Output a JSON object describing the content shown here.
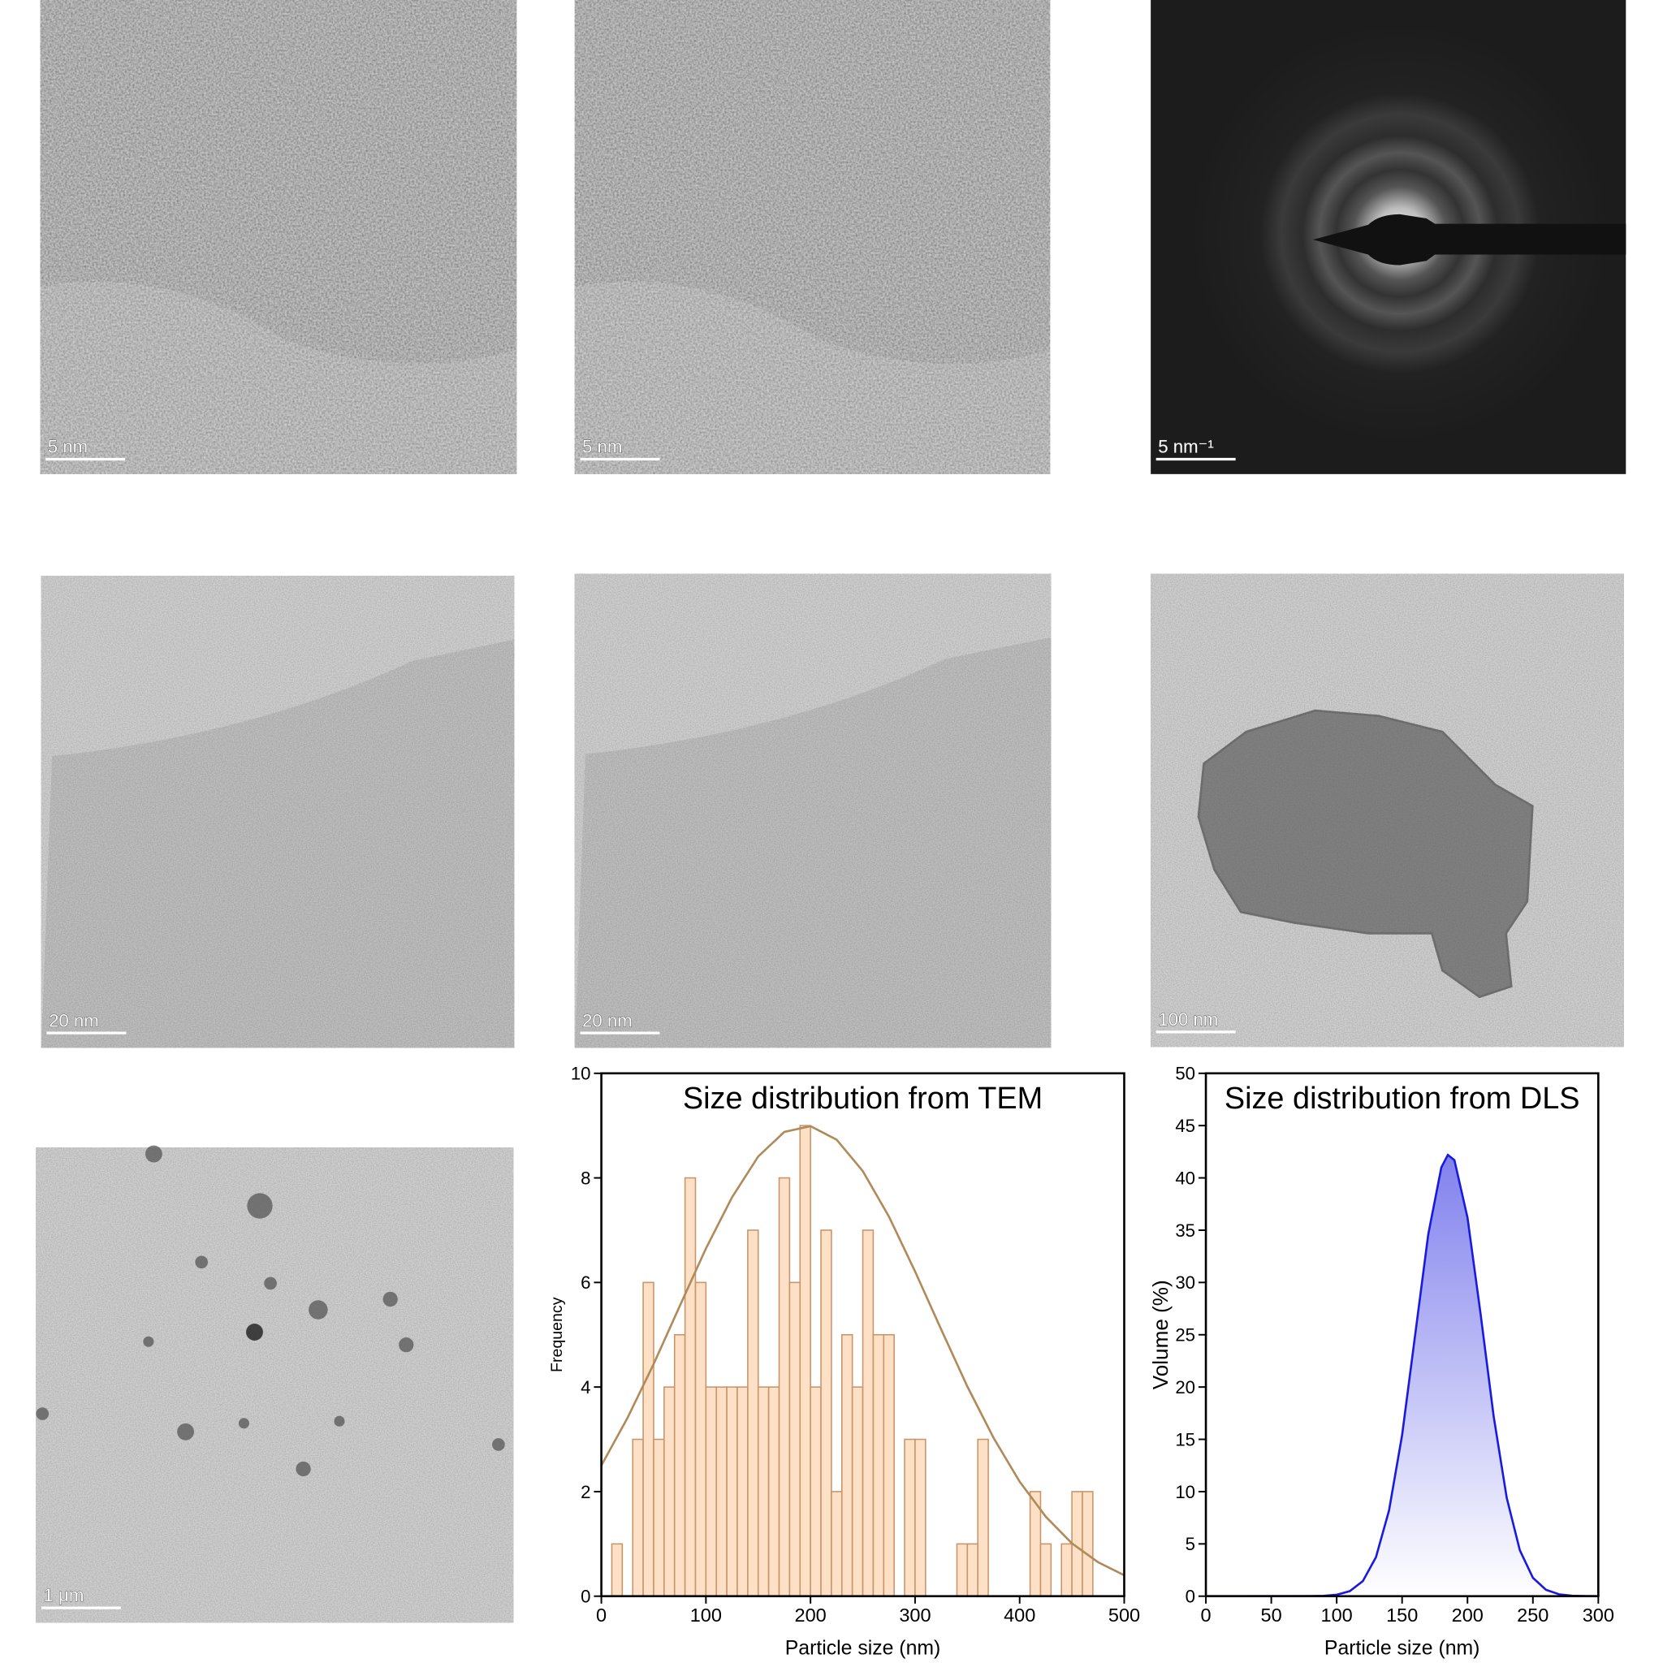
{
  "images": [
    {
      "scale_bar": "5 nm"
    },
    {
      "scale_bar": "5 nm"
    },
    {
      "scale_bar": "5 nm⁻¹"
    },
    {
      "scale_bar": "20 nm"
    },
    {
      "scale_bar": "20 nm"
    },
    {
      "scale_bar": "100 nm"
    },
    {
      "scale_bar": "1 μm"
    }
  ],
  "chart_data": [
    {
      "type": "histogram",
      "title": "Size distribution from TEM",
      "x_label": "Particle size (nm)",
      "y_label": "Frequency",
      "bins": [
        0,
        10,
        20,
        30,
        40,
        50,
        60,
        70,
        80,
        90,
        100,
        110,
        120,
        130,
        140,
        150,
        160,
        170,
        180,
        190,
        200,
        210,
        220,
        230,
        240,
        250,
        260,
        270,
        280,
        290,
        300,
        310,
        320,
        330,
        340,
        350,
        360,
        370,
        380,
        390,
        400,
        410,
        420,
        430,
        440,
        450,
        460,
        470
      ],
      "values": [
        0,
        1,
        0,
        3,
        6,
        3,
        4,
        5,
        8,
        6,
        4,
        4,
        4,
        4,
        7,
        4,
        4,
        8,
        6,
        9,
        4,
        7,
        2,
        5,
        4,
        7,
        5,
        5,
        0,
        3,
        3,
        0,
        0,
        0,
        1,
        1,
        3,
        0,
        0,
        0,
        0,
        2,
        1,
        0,
        1,
        2,
        2
      ],
      "color": "#fde0c5",
      "edge_color": "#c8956a",
      "fit": {
        "x": [
          0,
          25,
          50,
          75,
          100,
          125,
          150,
          175,
          200,
          225,
          250,
          275,
          300,
          325,
          350,
          375,
          400,
          425,
          450,
          475,
          500
        ],
        "values": [
          2.5,
          3.41,
          4.44,
          5.55,
          6.65,
          7.63,
          8.41,
          8.88,
          8.99,
          8.73,
          8.13,
          7.26,
          6.21,
          5.1,
          4.01,
          3.03,
          2.19,
          1.52,
          1.01,
          0.65,
          0.4
        ],
        "color": "#b08a5a"
      },
      "xlim": [
        0,
        500
      ],
      "ylim": [
        0,
        10
      ],
      "xticks": [
        0,
        100,
        200,
        300,
        400,
        500
      ],
      "yticks": [
        0,
        2,
        4,
        6,
        8,
        10
      ]
    },
    {
      "type": "area",
      "title": "Size distribution from DLS",
      "x_label": "Particle size (nm)",
      "y_label": "Volume (%)",
      "x": [
        0,
        80,
        90,
        100,
        110,
        120,
        130,
        140,
        150,
        160,
        170,
        180,
        185,
        190,
        200,
        210,
        220,
        230,
        240,
        250,
        260,
        270,
        280,
        290,
        300
      ],
      "values": [
        0,
        0.01,
        0.03,
        0.14,
        0.48,
        1.44,
        3.72,
        8.19,
        15.4,
        25.0,
        34.6,
        41.0,
        42.2,
        41.7,
        36.2,
        27.0,
        17.2,
        9.4,
        4.4,
        1.76,
        0.61,
        0.18,
        0.04,
        0.01,
        0
      ],
      "color": "#1a1adf",
      "xlim": [
        0,
        300
      ],
      "ylim": [
        0,
        50
      ],
      "xticks": [
        0,
        50,
        100,
        150,
        200,
        250,
        300
      ],
      "yticks": [
        0,
        5,
        10,
        15,
        20,
        25,
        30,
        35,
        40,
        45,
        50
      ]
    }
  ]
}
